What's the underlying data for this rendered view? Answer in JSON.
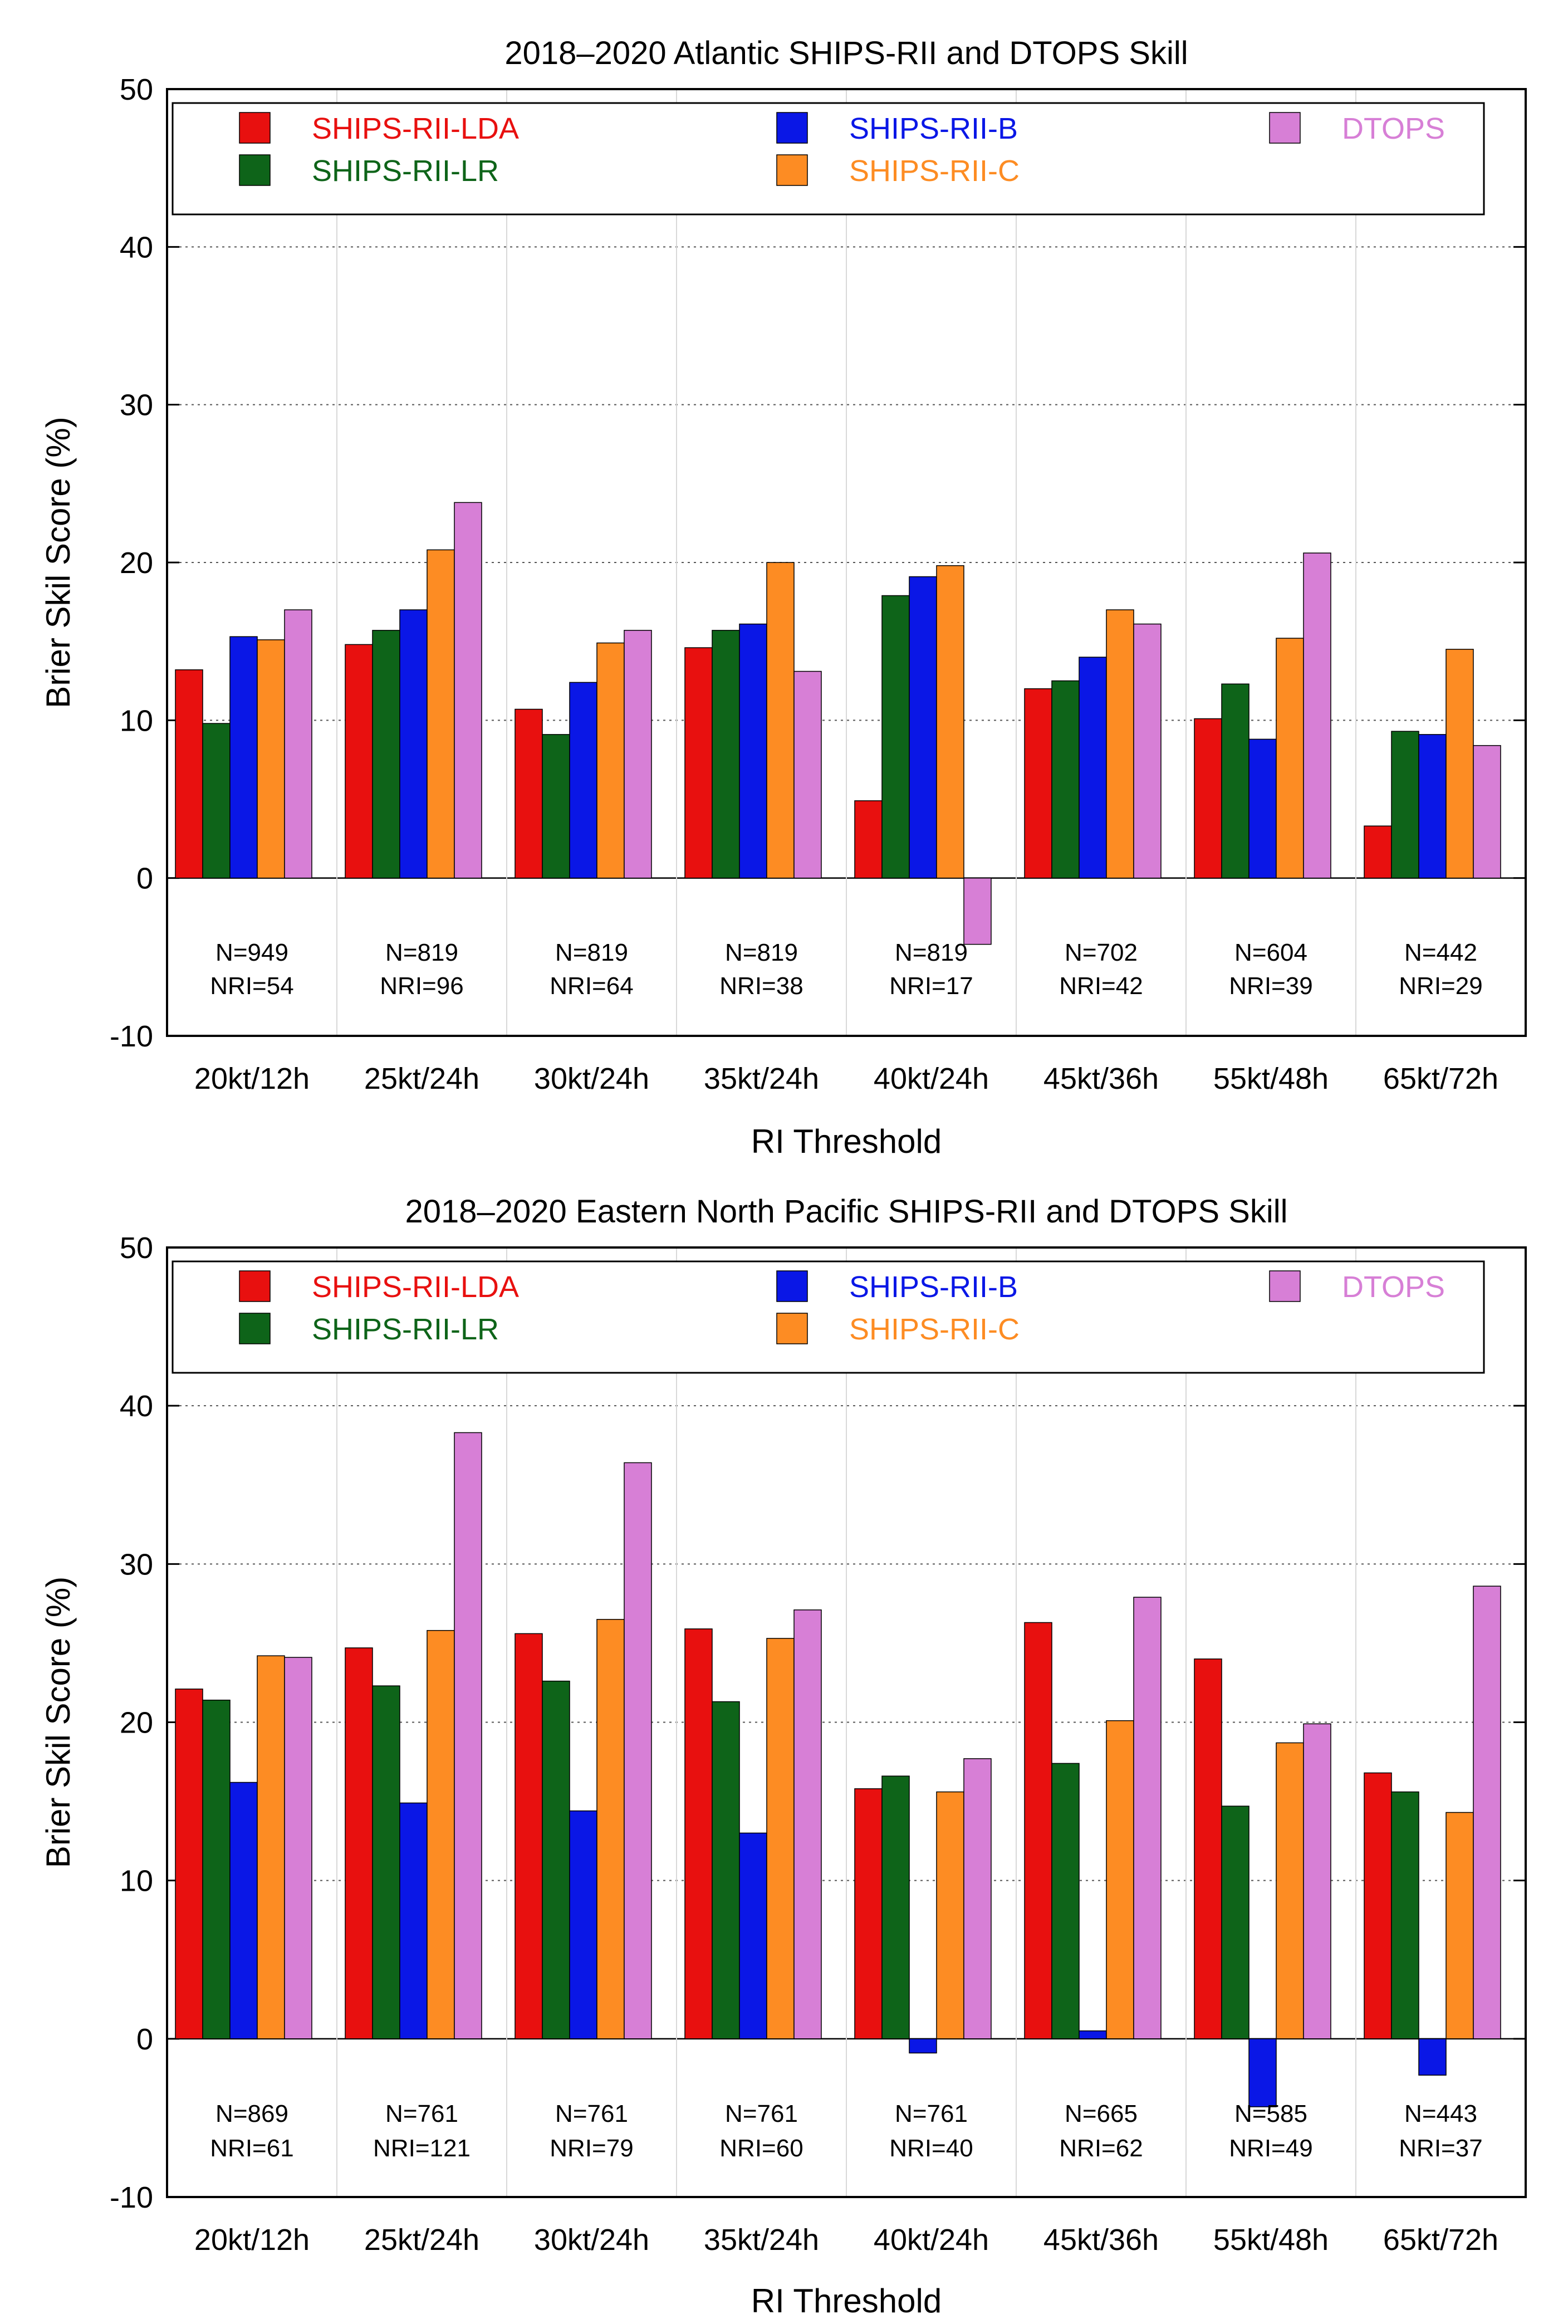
{
  "colors": {
    "SHIPS-RII-LDA": "#e8100f",
    "SHIPS-RII-LR": "#0e6419",
    "SHIPS-RII-B": "#0a17e6",
    "SHIPS-RII-C": "#fd8c23",
    "DTOPS": "#d77fd6"
  },
  "chart_data": [
    {
      "type": "bar",
      "title": "2018–2020 Atlantic SHIPS-RII and DTOPS Skill",
      "xlabel": "RI Threshold",
      "ylabel": "Brier Skil Score (%)",
      "ylim": [
        -10,
        50
      ],
      "yticks": [
        -10,
        0,
        10,
        20,
        30,
        40,
        50
      ],
      "grid": true,
      "legend_position": "top",
      "categories": [
        "20kt/12h",
        "25kt/24h",
        "30kt/24h",
        "35kt/24h",
        "40kt/24h",
        "45kt/36h",
        "55kt/48h",
        "65kt/72h"
      ],
      "annotations": {
        "N": [
          "N=949",
          "N=819",
          "N=819",
          "N=819",
          "N=819",
          "N=702",
          "N=604",
          "N=442"
        ],
        "NRI": [
          "NRI=54",
          "NRI=96",
          "NRI=64",
          "NRI=38",
          "NRI=17",
          "NRI=42",
          "NRI=39",
          "NRI=29"
        ]
      },
      "series": [
        {
          "name": "SHIPS-RII-LDA",
          "values": [
            13.2,
            14.8,
            10.7,
            14.6,
            4.9,
            12.0,
            10.1,
            3.3
          ]
        },
        {
          "name": "SHIPS-RII-LR",
          "values": [
            9.8,
            15.7,
            9.1,
            15.7,
            17.9,
            12.5,
            12.3,
            9.3
          ]
        },
        {
          "name": "SHIPS-RII-B",
          "values": [
            15.3,
            17.0,
            12.4,
            16.1,
            19.1,
            14.0,
            8.8,
            9.1
          ]
        },
        {
          "name": "SHIPS-RII-C",
          "values": [
            15.1,
            20.8,
            14.9,
            20.0,
            19.8,
            17.0,
            15.2,
            14.5
          ]
        },
        {
          "name": "DTOPS",
          "values": [
            17.0,
            23.8,
            15.7,
            13.1,
            -4.2,
            16.1,
            20.6,
            8.4
          ]
        }
      ]
    },
    {
      "type": "bar",
      "title": "2018–2020 Eastern North Pacific SHIPS-RII and DTOPS Skill",
      "xlabel": "RI Threshold",
      "ylabel": "Brier Skil Score (%)",
      "ylim": [
        -10,
        50
      ],
      "yticks": [
        -10,
        0,
        10,
        20,
        30,
        40,
        50
      ],
      "grid": true,
      "legend_position": "top",
      "categories": [
        "20kt/12h",
        "25kt/24h",
        "30kt/24h",
        "35kt/24h",
        "40kt/24h",
        "45kt/36h",
        "55kt/48h",
        "65kt/72h"
      ],
      "annotations": {
        "N": [
          "N=869",
          "N=761",
          "N=761",
          "N=761",
          "N=761",
          "N=665",
          "N=585",
          "N=443"
        ],
        "NRI": [
          "NRI=61",
          "NRI=121",
          "NRI=79",
          "NRI=60",
          "NRI=40",
          "NRI=62",
          "NRI=49",
          "NRI=37"
        ]
      },
      "series": [
        {
          "name": "SHIPS-RII-LDA",
          "values": [
            22.1,
            24.7,
            25.6,
            25.9,
            15.8,
            26.3,
            24.0,
            16.8
          ]
        },
        {
          "name": "SHIPS-RII-LR",
          "values": [
            21.4,
            22.3,
            22.6,
            21.3,
            16.6,
            17.4,
            14.7,
            15.6
          ]
        },
        {
          "name": "SHIPS-RII-B",
          "values": [
            16.2,
            14.9,
            14.4,
            13.0,
            -0.9,
            0.5,
            -4.3,
            -2.3
          ]
        },
        {
          "name": "SHIPS-RII-C",
          "values": [
            24.2,
            25.8,
            26.5,
            25.3,
            15.6,
            20.1,
            18.7,
            14.3
          ]
        },
        {
          "name": "DTOPS",
          "values": [
            24.1,
            38.3,
            36.4,
            27.1,
            17.7,
            27.9,
            19.9,
            28.6
          ]
        }
      ]
    }
  ]
}
